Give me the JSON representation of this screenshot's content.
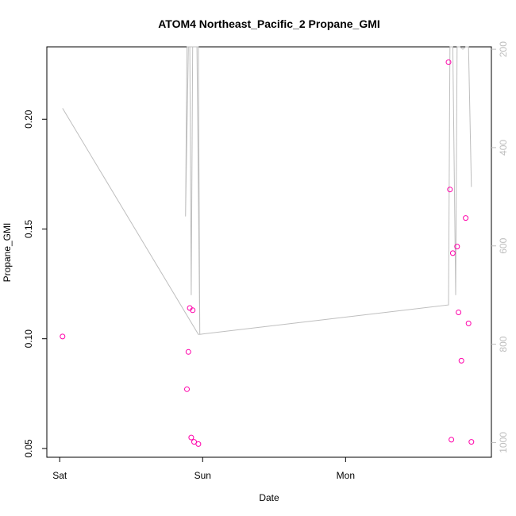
{
  "chart_data": {
    "type": "scatter",
    "title": "ATOM4 Northeast_Pacific_2 Propane_GMI",
    "xlabel": "Date",
    "ylabel": "Propane_GMI",
    "x_ticks": [
      "Sat",
      "Sun",
      "Mon"
    ],
    "y_ticks": [
      "0.05",
      "0.10",
      "0.15",
      "0.20"
    ],
    "y_tick_values": [
      0.05,
      0.1,
      0.15,
      0.2
    ],
    "right_ticks": [
      "200",
      "400",
      "600",
      "800",
      "1000"
    ],
    "right_tick_values": [
      200,
      400,
      600,
      800,
      1000
    ],
    "x_unit": "days after Saturday 00:00",
    "xlim": [
      -0.09,
      3.02
    ],
    "ylim": [
      0.046,
      0.233
    ],
    "right_ylim": [
      1030,
      195
    ],
    "grid": false,
    "series": [
      {
        "kind": "points",
        "color": "#ff00aa",
        "x": [
          0.02,
          0.89,
          0.9,
          0.91,
          0.92,
          0.93,
          0.94,
          0.97,
          2.72,
          2.73,
          2.74,
          2.75,
          2.78,
          2.79,
          2.81,
          2.84,
          2.86,
          2.88
        ],
        "y": [
          0.101,
          0.077,
          0.094,
          0.114,
          0.055,
          0.113,
          0.053,
          0.052,
          0.226,
          0.168,
          0.054,
          0.139,
          0.142,
          0.112,
          0.09,
          0.155,
          0.107,
          0.053
        ]
      },
      {
        "kind": "line",
        "axis": "right",
        "color": "#bebebe",
        "x": [
          0.02,
          0.97,
          0.98,
          0.96,
          0.93,
          0.92,
          0.91,
          0.89,
          0.88,
          0.9,
          0.92,
          0.94,
          0.97,
          0.98,
          2.72,
          2.73,
          2.75,
          2.77,
          2.78,
          2.8,
          2.82,
          2.84,
          2.86,
          2.88
        ],
        "y": [
          320,
          780,
          780,
          195,
          195,
          700,
          195,
          195,
          540,
          195,
          195,
          195,
          195,
          780,
          720,
          195,
          195,
          700,
          195,
          195,
          200,
          195,
          180,
          480
        ]
      }
    ]
  }
}
